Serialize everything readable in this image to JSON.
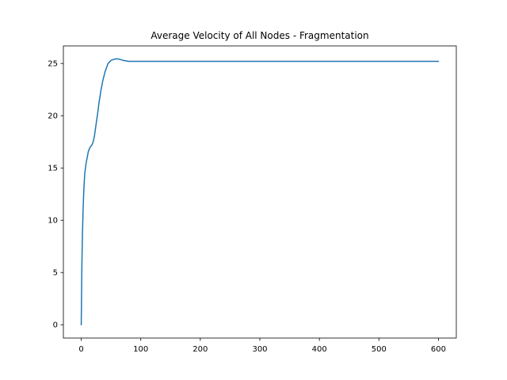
{
  "chart_data": {
    "type": "line",
    "title": "Average Velocity of All Nodes - Fragmentation",
    "xlabel": "",
    "ylabel": "",
    "xlim": [
      -30,
      630
    ],
    "ylim": [
      -1.27,
      26.68
    ],
    "xticks": [
      0,
      100,
      200,
      300,
      400,
      500,
      600
    ],
    "yticks": [
      0,
      5,
      10,
      15,
      20,
      25
    ],
    "grid": false,
    "line_color": "#1f77b4",
    "series": [
      {
        "x": [
          0,
          1,
          2,
          3,
          4,
          5,
          6,
          8,
          10,
          12,
          15,
          18,
          20,
          22,
          25,
          28,
          30,
          33,
          36,
          40,
          45,
          50,
          55,
          60,
          65,
          70,
          75,
          80,
          90,
          100,
          120,
          150,
          200,
          300,
          400,
          500,
          600
        ],
        "y": [
          0,
          5.5,
          8.5,
          10.8,
          12.4,
          13.6,
          14.5,
          15.4,
          16.0,
          16.6,
          17.0,
          17.2,
          17.5,
          18.0,
          19.2,
          20.4,
          21.3,
          22.4,
          23.3,
          24.2,
          25.0,
          25.3,
          25.4,
          25.45,
          25.4,
          25.3,
          25.25,
          25.2,
          25.2,
          25.2,
          25.2,
          25.2,
          25.2,
          25.2,
          25.2,
          25.2,
          25.2
        ]
      }
    ]
  }
}
